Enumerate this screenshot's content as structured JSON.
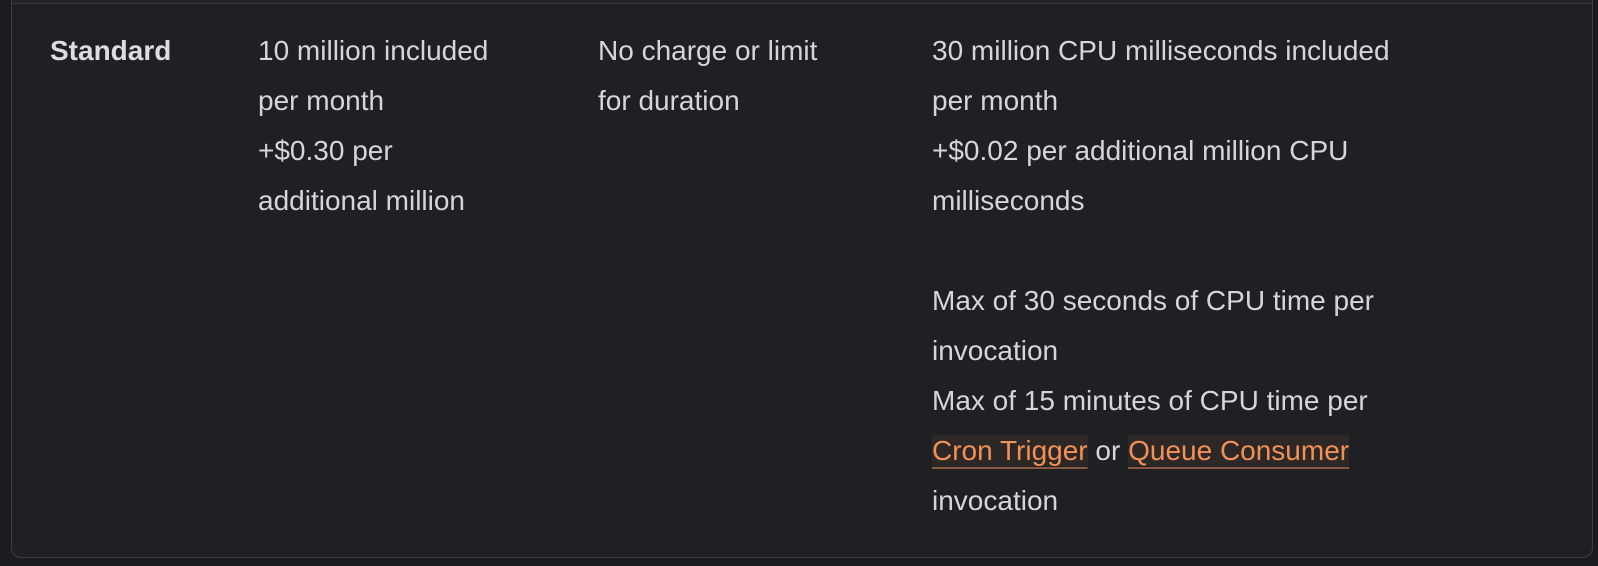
{
  "colors": {
    "page_background": "#1b1c1f",
    "row_background": "#1f2023",
    "previous_row_background": "#232428",
    "table_border": "#3d3f44",
    "body_text": "#d5d6d9",
    "link_orange": "#f29157"
  },
  "pricing_row": {
    "plan": "Standard",
    "requests": "10 million included\nper month\n+$0.30 per\nadditional million",
    "duration": "No charge or limit\nfor duration",
    "cpu_before_links": "30 million CPU milliseconds included\nper month\n+$0.02 per additional million CPU\nmilliseconds\n\nMax of 30 seconds of CPU time per\ninvocation\nMax of 15 minutes of CPU time per\n",
    "cron_trigger_link": "Cron Trigger",
    "link_separator": " or ",
    "queue_consumer_link": "Queue Consumer",
    "cpu_after_links": "\ninvocation"
  }
}
